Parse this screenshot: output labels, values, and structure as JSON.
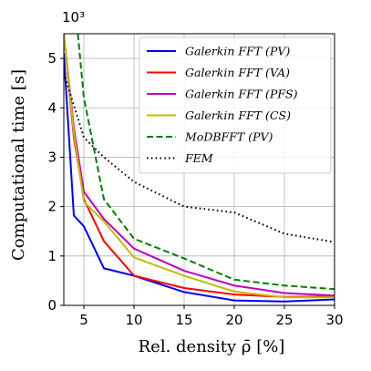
{
  "chart_data": {
    "type": "line",
    "title": "",
    "xlabel": "Rel. density ρ̄ [%]",
    "ylabel": "Computational time [s]",
    "y_multiplier_label": "10³",
    "xlim": [
      3,
      30
    ],
    "ylim": [
      0,
      5.5
    ],
    "xticks": [
      5,
      10,
      15,
      20,
      25,
      30
    ],
    "yticks": [
      0,
      1,
      2,
      3,
      4,
      5
    ],
    "grid": true,
    "legend_position": "top-right",
    "series": [
      {
        "name": "Galerkin FFT (PV)",
        "color": "#0000ff",
        "dash": "solid",
        "x": [
          3,
          4,
          5,
          7,
          10,
          15,
          20,
          25,
          30
        ],
        "y": [
          5.1,
          1.82,
          1.6,
          0.75,
          0.6,
          0.27,
          0.1,
          0.08,
          0.12
        ]
      },
      {
        "name": "Galerkin FFT (VA)",
        "color": "#ff0000",
        "dash": "solid",
        "x": [
          3,
          4,
          5,
          7,
          10,
          15,
          20,
          25,
          30
        ],
        "y": [
          5.5,
          3.4,
          2.15,
          1.3,
          0.6,
          0.35,
          0.22,
          0.17,
          0.18
        ]
      },
      {
        "name": "Galerkin FFT (PFS)",
        "color": "#c000c0",
        "dash": "solid",
        "x": [
          3,
          4,
          5,
          7,
          10,
          15,
          20,
          25,
          30
        ],
        "y": [
          5.5,
          3.6,
          2.3,
          1.75,
          1.15,
          0.7,
          0.4,
          0.25,
          0.2
        ]
      },
      {
        "name": "Galerkin FFT (CS)",
        "color": "#bfbf00",
        "dash": "solid",
        "x": [
          3,
          4,
          5,
          7,
          10,
          15,
          20,
          25,
          30
        ],
        "y": [
          5.5,
          3.5,
          2.1,
          1.7,
          0.97,
          0.6,
          0.28,
          0.16,
          0.16
        ]
      },
      {
        "name": "MoDBFFT (PV)",
        "color": "#008000",
        "dash": "dashed",
        "x": [
          4.4,
          5,
          7,
          10,
          15,
          20,
          25,
          30
        ],
        "y": [
          5.5,
          4.2,
          2.15,
          1.35,
          0.95,
          0.52,
          0.4,
          0.33
        ]
      },
      {
        "name": "FEM",
        "color": "#000000",
        "dash": "dotted",
        "x": [
          3,
          5,
          7,
          10,
          15,
          20,
          25,
          30
        ],
        "y": [
          4.7,
          3.4,
          3.0,
          2.5,
          2.0,
          1.88,
          1.45,
          1.28
        ]
      }
    ]
  }
}
